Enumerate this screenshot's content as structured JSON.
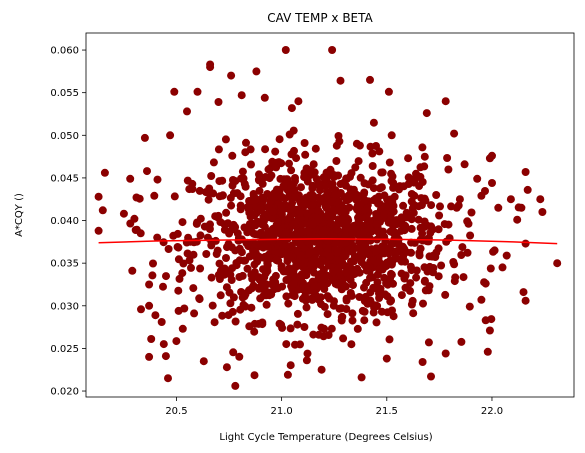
{
  "chart_data": {
    "type": "scatter",
    "title": "CAV TEMP x BETA",
    "xlabel": "Light Cycle Temperature (Degrees Celsius)",
    "ylabel": "A*CQY ()",
    "xlim": [
      20.07,
      22.39
    ],
    "ylim": [
      0.0193,
      0.062
    ],
    "x_ticks": [
      20.5,
      21.0,
      21.5,
      22.0
    ],
    "x_tick_labels": [
      "20.5",
      "21.0",
      "21.5",
      "22.0"
    ],
    "y_ticks": [
      0.02,
      0.025,
      0.03,
      0.035,
      0.04,
      0.045,
      0.05,
      0.055,
      0.06
    ],
    "y_tick_labels": [
      "0.020",
      "0.025",
      "0.030",
      "0.035",
      "0.040",
      "0.045",
      "0.050",
      "0.055",
      "0.060"
    ],
    "grid": false,
    "legend": "none",
    "point_color": "#8b0000",
    "fit_color": "#ff0000",
    "points": [
      {
        "x": 20.13,
        "y": 0.0388
      },
      {
        "x": 20.13,
        "y": 0.0428
      },
      {
        "x": 20.16,
        "y": 0.0456
      },
      {
        "x": 20.15,
        "y": 0.0412
      },
      {
        "x": 20.25,
        "y": 0.0408
      },
      {
        "x": 20.28,
        "y": 0.0449
      },
      {
        "x": 20.3,
        "y": 0.0402
      },
      {
        "x": 20.31,
        "y": 0.0427
      },
      {
        "x": 20.29,
        "y": 0.0341
      },
      {
        "x": 20.33,
        "y": 0.0385
      },
      {
        "x": 20.35,
        "y": 0.0497
      },
      {
        "x": 20.36,
        "y": 0.0458
      },
      {
        "x": 20.37,
        "y": 0.0325
      },
      {
        "x": 20.37,
        "y": 0.03
      },
      {
        "x": 20.38,
        "y": 0.0261
      },
      {
        "x": 20.37,
        "y": 0.024
      },
      {
        "x": 20.4,
        "y": 0.0289
      },
      {
        "x": 20.41,
        "y": 0.0448
      },
      {
        "x": 20.43,
        "y": 0.0281
      },
      {
        "x": 20.44,
        "y": 0.0255
      },
      {
        "x": 20.46,
        "y": 0.0215
      },
      {
        "x": 20.45,
        "y": 0.0241
      },
      {
        "x": 20.47,
        "y": 0.05
      },
      {
        "x": 20.49,
        "y": 0.0551
      },
      {
        "x": 20.51,
        "y": 0.0294
      },
      {
        "x": 20.53,
        "y": 0.0273
      },
      {
        "x": 20.55,
        "y": 0.0528
      },
      {
        "x": 20.6,
        "y": 0.0551
      },
      {
        "x": 20.66,
        "y": 0.058
      },
      {
        "x": 20.66,
        "y": 0.0583
      },
      {
        "x": 20.63,
        "y": 0.0235
      },
      {
        "x": 20.7,
        "y": 0.0539
      },
      {
        "x": 20.74,
        "y": 0.0228
      },
      {
        "x": 20.76,
        "y": 0.057
      },
      {
        "x": 20.78,
        "y": 0.0206
      },
      {
        "x": 20.81,
        "y": 0.0547
      },
      {
        "x": 20.88,
        "y": 0.0575
      },
      {
        "x": 20.92,
        "y": 0.0544
      },
      {
        "x": 21.02,
        "y": 0.06
      },
      {
        "x": 21.08,
        "y": 0.054
      },
      {
        "x": 21.24,
        "y": 0.06
      },
      {
        "x": 21.28,
        "y": 0.0564
      },
      {
        "x": 21.42,
        "y": 0.0565
      },
      {
        "x": 21.51,
        "y": 0.0551
      },
      {
        "x": 21.03,
        "y": 0.0219
      },
      {
        "x": 21.12,
        "y": 0.0236
      },
      {
        "x": 21.19,
        "y": 0.0225
      },
      {
        "x": 21.38,
        "y": 0.0216
      },
      {
        "x": 21.5,
        "y": 0.0238
      },
      {
        "x": 21.67,
        "y": 0.0234
      },
      {
        "x": 21.71,
        "y": 0.0217
      },
      {
        "x": 21.69,
        "y": 0.0526
      },
      {
        "x": 21.78,
        "y": 0.054
      },
      {
        "x": 21.82,
        "y": 0.0502
      },
      {
        "x": 21.87,
        "y": 0.0466
      },
      {
        "x": 21.93,
        "y": 0.0449
      },
      {
        "x": 21.99,
        "y": 0.0473
      },
      {
        "x": 22.0,
        "y": 0.0476
      },
      {
        "x": 21.95,
        "y": 0.0429
      },
      {
        "x": 22.0,
        "y": 0.0444
      },
      {
        "x": 22.03,
        "y": 0.0415
      },
      {
        "x": 22.09,
        "y": 0.0425
      },
      {
        "x": 22.12,
        "y": 0.0401
      },
      {
        "x": 22.14,
        "y": 0.0415
      },
      {
        "x": 22.17,
        "y": 0.0436
      },
      {
        "x": 22.23,
        "y": 0.0425
      },
      {
        "x": 22.24,
        "y": 0.041
      },
      {
        "x": 22.16,
        "y": 0.0457
      },
      {
        "x": 22.16,
        "y": 0.0373
      },
      {
        "x": 22.05,
        "y": 0.0345
      },
      {
        "x": 22.15,
        "y": 0.0316
      },
      {
        "x": 22.16,
        "y": 0.0306
      },
      {
        "x": 22.31,
        "y": 0.035
      },
      {
        "x": 21.97,
        "y": 0.0326
      },
      {
        "x": 21.95,
        "y": 0.0307
      },
      {
        "x": 21.97,
        "y": 0.0283
      },
      {
        "x": 21.99,
        "y": 0.0271
      },
      {
        "x": 21.98,
        "y": 0.0246
      },
      {
        "x": 21.78,
        "y": 0.0244
      },
      {
        "x": 21.7,
        "y": 0.0257
      }
    ],
    "fit_line": [
      {
        "x": 20.13,
        "y": 0.0374
      },
      {
        "x": 20.4,
        "y": 0.0376
      },
      {
        "x": 20.7,
        "y": 0.0377
      },
      {
        "x": 21.0,
        "y": 0.0378
      },
      {
        "x": 21.2,
        "y": 0.03785
      },
      {
        "x": 21.5,
        "y": 0.0378
      },
      {
        "x": 21.8,
        "y": 0.0377
      },
      {
        "x": 22.1,
        "y": 0.0375
      },
      {
        "x": 22.31,
        "y": 0.0373
      }
    ]
  }
}
